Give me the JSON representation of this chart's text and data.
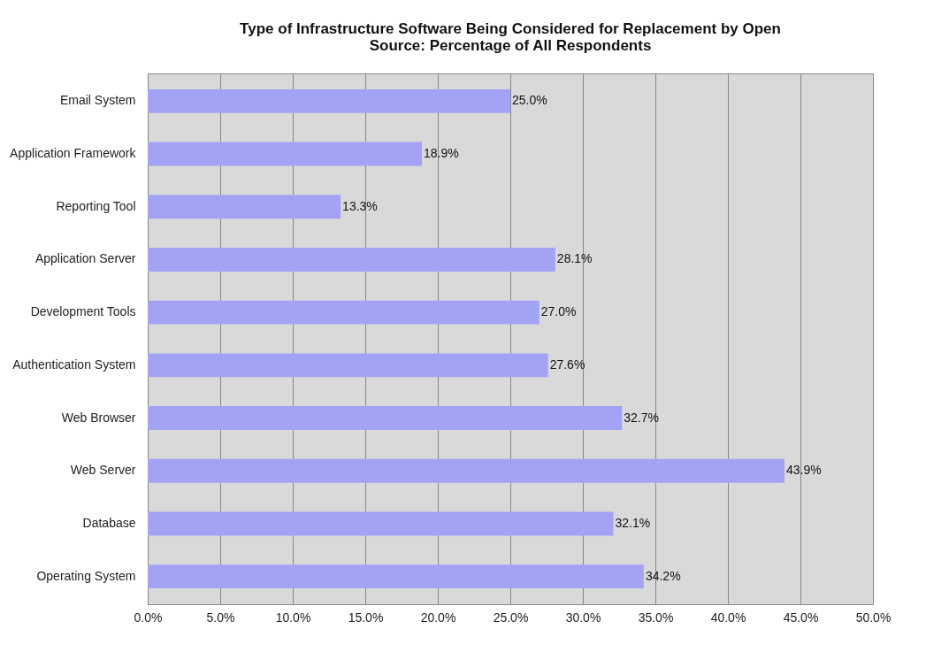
{
  "chart_data": {
    "type": "bar",
    "orientation": "horizontal",
    "title": "Type of Infrastructure Software Being Considered for Replacement by Open Source:  Percentage of All Respondents",
    "categories": [
      "Email System",
      "Application Framework",
      "Reporting Tool",
      "Application Server",
      "Development Tools",
      "Authentication System",
      "Web Browser",
      "Web Server",
      "Database",
      "Operating System"
    ],
    "values": [
      25.0,
      18.9,
      13.3,
      28.1,
      27.0,
      27.6,
      32.7,
      43.9,
      32.1,
      34.2
    ],
    "value_labels": [
      "25.0%",
      "18.9%",
      "13.3%",
      "28.1%",
      "27.0%",
      "27.6%",
      "32.7%",
      "43.9%",
      "32.1%",
      "34.2%"
    ],
    "color": "#a3a3f5",
    "xlim": [
      0,
      50
    ],
    "xticks": [
      {
        "value": 0,
        "label": "0.0%"
      },
      {
        "value": 5,
        "label": "5.0%"
      },
      {
        "value": 10,
        "label": "10.0%"
      },
      {
        "value": 15,
        "label": "15.0%"
      },
      {
        "value": 20,
        "label": "20.0%"
      },
      {
        "value": 25,
        "label": "25.0%"
      },
      {
        "value": 30,
        "label": "30.0%"
      },
      {
        "value": 35,
        "label": "35.0%"
      },
      {
        "value": 40,
        "label": "40.0%"
      },
      {
        "value": 45,
        "label": "45.0%"
      },
      {
        "value": 50,
        "label": "50.0%"
      }
    ],
    "grid": "x"
  }
}
